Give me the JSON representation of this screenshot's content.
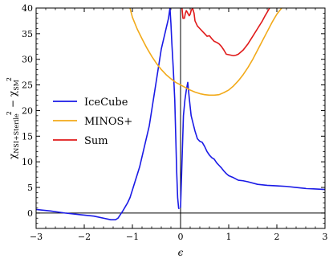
{
  "chart_data": {
    "type": "line",
    "xlabel": "ϵ",
    "ylabel_main": "χ",
    "ylabel_sub1": "NSI+Sterile",
    "ylabel_sub2": "SM",
    "ylabel_sup": "2",
    "ylabel_minus": "−",
    "xlim": [
      -3,
      3
    ],
    "ylim": [
      -3,
      40
    ],
    "xticks": [
      -3,
      -2,
      -1,
      0,
      1,
      2,
      3
    ],
    "xtick_labels": [
      "−3",
      "−2",
      "−1",
      "0",
      "1",
      "2",
      "3"
    ],
    "yticks": [
      0,
      5,
      10,
      15,
      20,
      25,
      30,
      35,
      40
    ],
    "ytick_labels": [
      "0",
      "5",
      "10",
      "15",
      "20",
      "25",
      "30",
      "35",
      "40"
    ],
    "zero_line": 0,
    "vline_x": 0,
    "legend_position": "center-left",
    "series": [
      {
        "name": "IceCube",
        "color": "#1a1ae6",
        "x": [
          -3,
          -2.7,
          -2.4,
          -2.1,
          -1.8,
          -1.6,
          -1.45,
          -1.35,
          -1.3,
          -1.25,
          -1.2,
          -1.15,
          -1.1,
          -1.05,
          -1,
          -0.95,
          -0.9,
          -0.85,
          -0.8,
          -0.75,
          -0.7,
          -0.65,
          -0.6,
          -0.55,
          -0.5,
          -0.45,
          -0.4,
          -0.35,
          -0.3,
          -0.25,
          -0.22,
          -0.2,
          -0.18,
          -0.15,
          -0.12,
          -0.1,
          -0.08,
          -0.06,
          -0.04,
          -0.03
        ],
        "y": [
          0.7,
          0.4,
          0.0,
          -0.3,
          -0.6,
          -1.0,
          -1.3,
          -1.3,
          -1.0,
          -0.3,
          0.4,
          1.2,
          2.0,
          3.0,
          4.5,
          6.0,
          7.5,
          9.0,
          11.0,
          13.0,
          15.0,
          17.0,
          20.0,
          23.0,
          26.0,
          29.0,
          32.0,
          34.0,
          36.0,
          38.0,
          40.0,
          37.0,
          33.0,
          28.0,
          22.0,
          15.0,
          8.0,
          3.0,
          1.0,
          0.8
        ]
      },
      {
        "name": "IceCube-right",
        "color": "#1a1ae6",
        "x": [
          0,
          0.03,
          0.06,
          0.09,
          0.12,
          0.15,
          0.18,
          0.22,
          0.3,
          0.35,
          0.4,
          0.45,
          0.5,
          0.55,
          0.6,
          0.65,
          0.7,
          0.75,
          0.8,
          0.85,
          0.9,
          0.95,
          1.0,
          1.1,
          1.2,
          1.3,
          1.4,
          1.6,
          1.8,
          2.0,
          2.2,
          2.4,
          2.6,
          2.8,
          3.0
        ],
        "y": [
          1.0,
          10.0,
          19.0,
          22.0,
          24.0,
          25.5,
          22.5,
          19.0,
          16.0,
          14.5,
          14.0,
          13.8,
          13.0,
          12.0,
          11.3,
          10.8,
          10.5,
          9.8,
          9.3,
          8.8,
          8.2,
          7.7,
          7.3,
          6.9,
          6.4,
          6.3,
          6.1,
          5.6,
          5.4,
          5.3,
          5.2,
          5.0,
          4.8,
          4.7,
          4.6
        ]
      },
      {
        "name": "MINOS+",
        "color": "#f2aa1a",
        "x": [
          -1.05,
          -1.0,
          -0.9,
          -0.8,
          -0.7,
          -0.6,
          -0.5,
          -0.4,
          -0.3,
          -0.2,
          -0.1,
          0,
          0.1,
          0.2,
          0.3,
          0.4,
          0.5,
          0.6,
          0.7,
          0.8,
          0.9,
          1.0,
          1.1,
          1.2,
          1.3,
          1.4,
          1.5,
          1.6,
          1.7,
          1.8,
          1.9,
          2.0,
          2.1
        ],
        "y": [
          40.0,
          38.2,
          35.9,
          34.0,
          32.2,
          30.6,
          29.2,
          28.0,
          27.0,
          26.2,
          25.5,
          25.0,
          24.5,
          24.0,
          23.6,
          23.3,
          23.1,
          23.0,
          23.0,
          23.1,
          23.5,
          24.0,
          24.8,
          25.8,
          27.0,
          28.4,
          30.0,
          31.8,
          33.6,
          35.4,
          37.2,
          38.8,
          40.0
        ]
      },
      {
        "name": "Sum",
        "color": "#e01a1a",
        "x": [
          0.03,
          0.05,
          0.08,
          0.1,
          0.12,
          0.15,
          0.18,
          0.2,
          0.22,
          0.25,
          0.28,
          0.3,
          0.35,
          0.4,
          0.45,
          0.5,
          0.55,
          0.6,
          0.65,
          0.7,
          0.75,
          0.8,
          0.85,
          0.9,
          0.95,
          1.0,
          1.05,
          1.1,
          1.15,
          1.2,
          1.3,
          1.4,
          1.5,
          1.6,
          1.7,
          1.75,
          1.8,
          1.85
        ],
        "y": [
          40.0,
          38.0,
          38.0,
          39.0,
          39.5,
          39.0,
          38.5,
          38.8,
          39.5,
          40.0,
          39.0,
          37.5,
          36.5,
          36.0,
          35.5,
          35.0,
          34.5,
          34.6,
          34.0,
          33.5,
          33.3,
          33.0,
          32.5,
          31.8,
          31.0,
          30.9,
          30.8,
          30.7,
          30.8,
          31.0,
          31.8,
          33.0,
          34.5,
          36.0,
          37.5,
          38.4,
          39.2,
          40.0
        ]
      }
    ],
    "legend": [
      {
        "label": "IceCube",
        "color": "#1a1ae6"
      },
      {
        "label": "MINOS+",
        "color": "#f2aa1a"
      },
      {
        "label": "Sum",
        "color": "#e01a1a"
      }
    ]
  }
}
